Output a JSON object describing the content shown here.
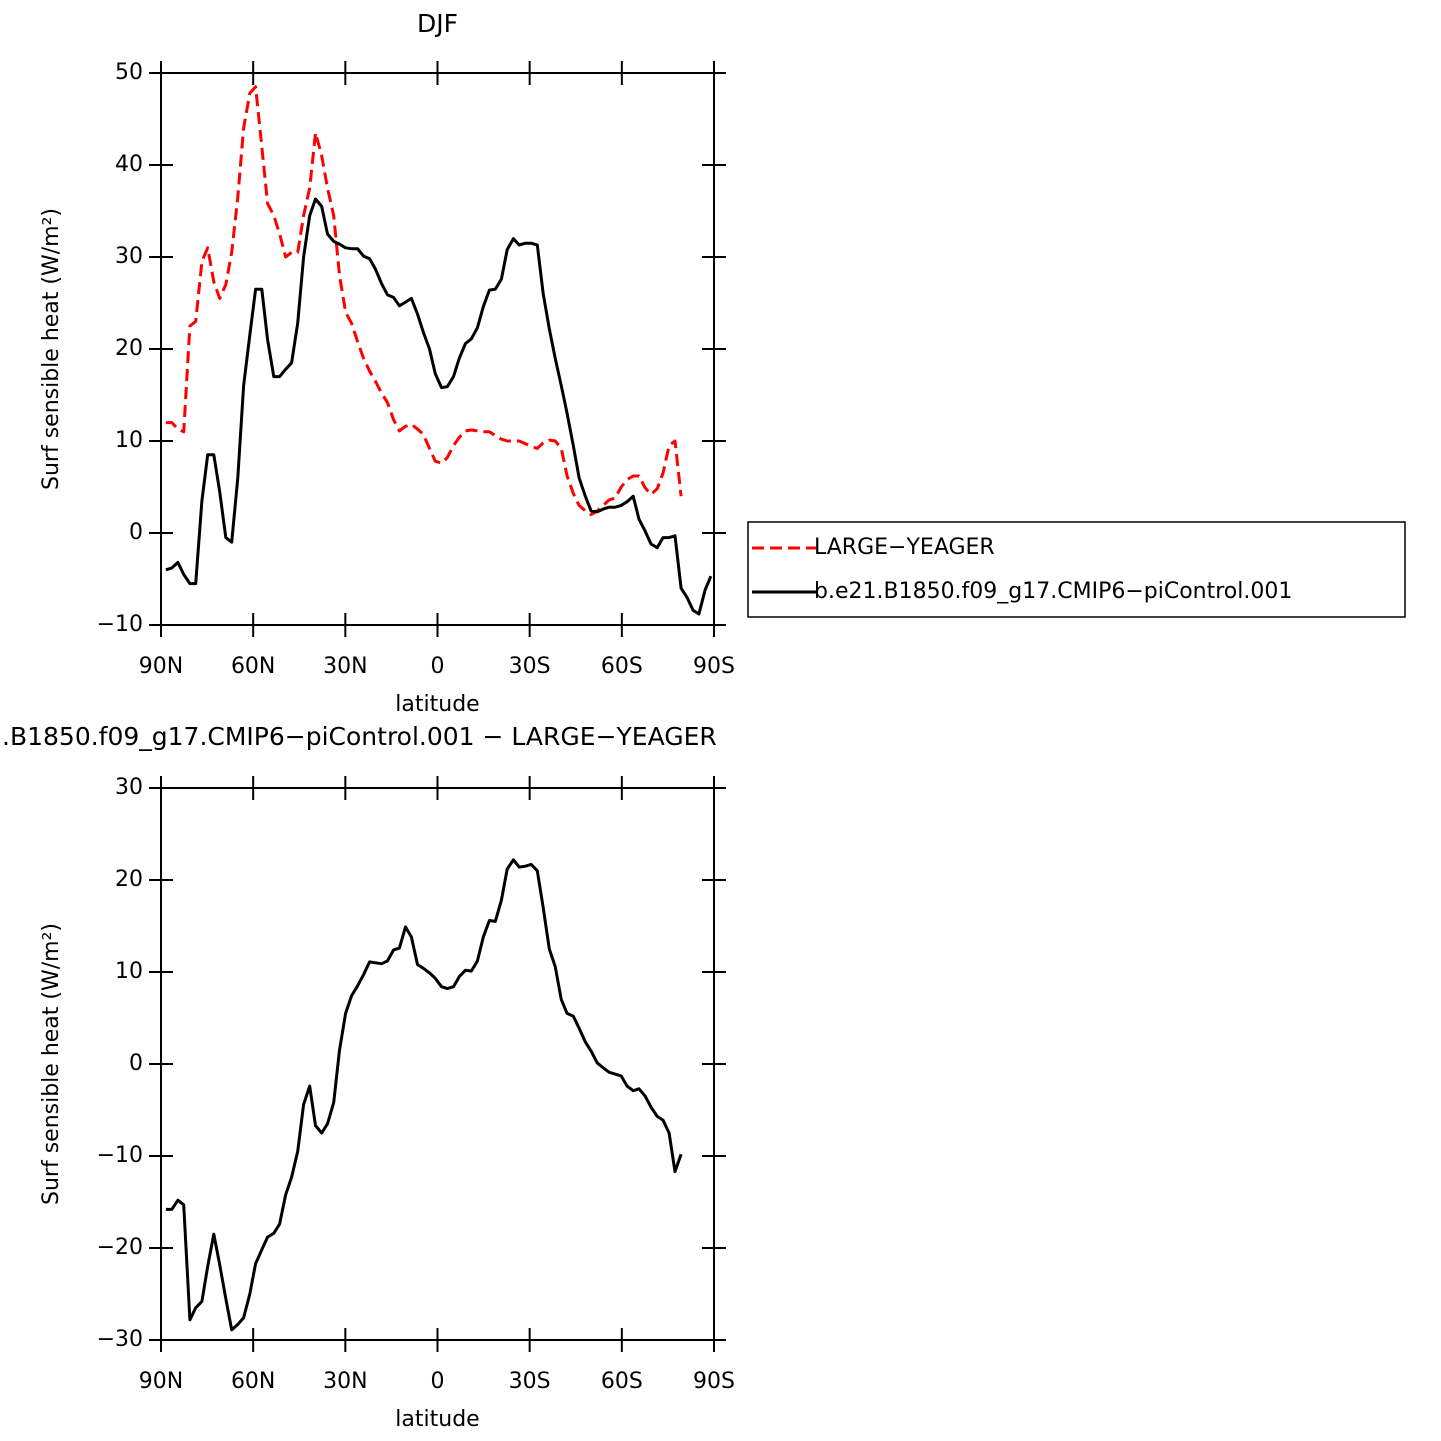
{
  "chart_data": [
    {
      "type": "line",
      "title": "DJF",
      "xlabel": "latitude",
      "ylabel": "Surf sensible heat (W/m²)",
      "xlim": [
        90,
        -90
      ],
      "xticks": [
        {
          "value": 90,
          "label": "90N"
        },
        {
          "value": 60,
          "label": "60N"
        },
        {
          "value": 30,
          "label": "30N"
        },
        0,
        {
          "value": -30,
          "label": "30S"
        },
        {
          "value": -60,
          "label": "60S"
        },
        {
          "value": -90,
          "label": "90S"
        }
      ],
      "ylim": [
        -10,
        50
      ],
      "yticks": [
        {
          "value": -10,
          "label": "−10"
        },
        0,
        10,
        20,
        30,
        40,
        50
      ],
      "legend": "right",
      "x": [
        88.4,
        86.5,
        84.5,
        82.6,
        80.6,
        78.7,
        76.7,
        74.8,
        72.8,
        70.9,
        68.9,
        67.0,
        65.0,
        63.1,
        61.1,
        59.2,
        57.2,
        55.3,
        53.3,
        51.4,
        49.4,
        47.5,
        45.5,
        43.6,
        41.6,
        39.7,
        37.7,
        35.8,
        33.8,
        31.9,
        29.9,
        28.0,
        26.0,
        24.1,
        22.1,
        20.2,
        18.2,
        16.3,
        14.3,
        12.4,
        10.4,
        8.5,
        6.5,
        4.6,
        2.6,
        0.7,
        -1.3,
        -3.2,
        -5.2,
        -7.1,
        -9.1,
        -11.0,
        -13.0,
        -14.9,
        -16.9,
        -18.8,
        -20.8,
        -22.7,
        -24.7,
        -26.6,
        -28.6,
        -30.5,
        -32.5,
        -34.4,
        -36.4,
        -38.3,
        -40.3,
        -42.2,
        -44.2,
        -46.1,
        -48.1,
        -50.0,
        -52.0,
        -53.9,
        -55.9,
        -57.8,
        -59.8,
        -61.7,
        -63.7,
        -65.6,
        -67.6,
        -69.5,
        -71.5,
        -73.4,
        -75.4,
        -77.3,
        -79.3,
        -81.2,
        -83.2,
        -85.1,
        -87.1,
        -89.0
      ],
      "series": [
        {
          "name": "LARGE−YEAGER",
          "color": "#ff0000",
          "line_style": "dashed",
          "values": [
            12,
            12,
            11.3,
            11,
            22.5,
            23,
            29.5,
            31,
            27.3,
            25.5,
            27,
            30.5,
            36.5,
            44,
            47.8,
            48.5,
            42,
            35.8,
            34.5,
            32.5,
            30,
            30.5,
            30.5,
            34.5,
            37.5,
            43.5,
            41,
            37.5,
            34.5,
            28,
            24,
            22.8,
            20.8,
            19,
            17.6,
            16.5,
            15.2,
            14.2,
            12.3,
            11.1,
            11.6,
            11.8,
            11.3,
            10.7,
            9.2,
            7.8,
            7.6,
            8.2,
            9.5,
            10.4,
            11.1,
            11.2,
            11.1,
            11,
            11,
            10.6,
            10.2,
            10,
            10,
            10,
            9.7,
            9.4,
            9.2,
            9.8,
            10.1,
            10,
            9.2,
            6.2,
            4.3,
            3,
            2.4,
            2,
            2.4,
            3,
            3.6,
            3.8,
            5,
            5.8,
            6.2,
            6.2,
            4.9,
            4.2,
            4.8,
            6.5,
            9.5,
            10,
            4,
            null,
            null,
            null,
            null,
            null
          ]
        },
        {
          "name": "b.e21.B1850.f09_g17.CMIP6−piControl.001",
          "color": "#000000",
          "line_style": "solid",
          "values": [
            -4,
            -3.8,
            -3.2,
            -4.5,
            -5.5,
            -5.5,
            3.5,
            8.5,
            8.5,
            4.5,
            -0.5,
            -1,
            6,
            16,
            21.5,
            26.5,
            26.5,
            21,
            17,
            17,
            17.8,
            18.5,
            22.8,
            30,
            34.5,
            36.3,
            35.5,
            32.5,
            31.7,
            31.4,
            31,
            30.9,
            30.9,
            30.1,
            29.8,
            28.7,
            27.1,
            25.9,
            25.6,
            24.7,
            25.1,
            25.5,
            23.8,
            21.8,
            20,
            17.3,
            15.8,
            15.9,
            17,
            19,
            20.6,
            21.1,
            22.3,
            24.6,
            26.4,
            26.5,
            27.6,
            30.8,
            32,
            31.3,
            31.5,
            31.5,
            31.3,
            26,
            22.2,
            19,
            16,
            13,
            9.5,
            6,
            4,
            2.4,
            2.3,
            2.6,
            2.8,
            2.8,
            3,
            3.4,
            4,
            1.5,
            0.2,
            -1.2,
            -1.6,
            -0.5,
            -0.5,
            -0.3,
            -6,
            -7,
            -8.4,
            -8.8,
            -6.2,
            -4.7
          ]
        }
      ]
    },
    {
      "type": "line",
      "title": ".B1850.f09_g17.CMIP6−piControl.001 − LARGE−YEAGER",
      "xlabel": "latitude",
      "ylabel": "Surf sensible heat (W/m²)",
      "xlim": [
        90,
        -90
      ],
      "xticks": [
        {
          "value": 90,
          "label": "90N"
        },
        {
          "value": 60,
          "label": "60N"
        },
        {
          "value": 30,
          "label": "30N"
        },
        0,
        {
          "value": -30,
          "label": "30S"
        },
        {
          "value": -60,
          "label": "60S"
        },
        {
          "value": -90,
          "label": "90S"
        }
      ],
      "ylim": [
        -30,
        30
      ],
      "yticks": [
        {
          "value": -30,
          "label": "−30"
        },
        {
          "value": -20,
          "label": "−20"
        },
        {
          "value": -10,
          "label": "−10"
        },
        0,
        10,
        20,
        30
      ],
      "x": [
        88.4,
        86.5,
        84.5,
        82.6,
        80.6,
        78.7,
        76.7,
        74.8,
        72.8,
        70.9,
        68.9,
        67.0,
        65.0,
        63.1,
        61.1,
        59.2,
        57.2,
        55.3,
        53.3,
        51.4,
        49.4,
        47.5,
        45.5,
        43.6,
        41.6,
        39.7,
        37.7,
        35.8,
        33.8,
        31.9,
        29.9,
        28.0,
        26.0,
        24.1,
        22.1,
        20.2,
        18.2,
        16.3,
        14.3,
        12.4,
        10.4,
        8.5,
        6.5,
        4.6,
        2.6,
        0.7,
        -1.3,
        -3.2,
        -5.2,
        -7.1,
        -9.1,
        -11.0,
        -13.0,
        -14.9,
        -16.9,
        -18.8,
        -20.8,
        -22.7,
        -24.7,
        -26.6,
        -28.6,
        -30.5,
        -32.5,
        -34.4,
        -36.4,
        -38.3,
        -40.3,
        -42.2,
        -44.2,
        -46.1,
        -48.1,
        -50.0,
        -52.0,
        -53.9,
        -55.9,
        -57.8,
        -59.8,
        -61.7,
        -63.7,
        -65.6,
        -67.6,
        -69.5,
        -71.5,
        -73.4,
        -75.4,
        -77.3,
        -79.3,
        -81.2,
        -83.2,
        -85.1,
        -87.1,
        -89.0
      ],
      "series": [
        {
          "color": "#000000",
          "line_style": "solid",
          "values": [
            -15.8,
            -15.8,
            -14.8,
            -15.3,
            -27.8,
            -26.5,
            -25.8,
            -22,
            -18.5,
            -21.8,
            -25.5,
            -28.9,
            -28.3,
            -27.6,
            -25,
            -21.7,
            -20.2,
            -18.8,
            -18.4,
            -17.4,
            -14.2,
            -12.3,
            -9.5,
            -4.4,
            -2.4,
            -6.7,
            -7.5,
            -6.5,
            -4.2,
            1.5,
            5.5,
            7.4,
            8.5,
            9.7,
            11.1,
            11,
            10.9,
            11.2,
            12.4,
            12.6,
            14.9,
            13.8,
            10.8,
            10.4,
            9.9,
            9.3,
            8.4,
            8.2,
            8.4,
            9.5,
            10.2,
            10.1,
            11.2,
            13.8,
            15.6,
            15.5,
            17.8,
            21.2,
            22.2,
            21.4,
            21.5,
            21.7,
            21,
            17,
            12.5,
            10.6,
            7,
            5.5,
            5.2,
            3.9,
            2.4,
            1.4,
            0.1,
            -0.4,
            -0.9,
            -1.1,
            -1.3,
            -2.4,
            -2.9,
            -2.7,
            -3.5,
            -4.7,
            -5.7,
            -6.1,
            -7.5,
            -11.7,
            -9.8,
            null,
            null,
            null,
            null,
            null
          ]
        }
      ]
    }
  ]
}
